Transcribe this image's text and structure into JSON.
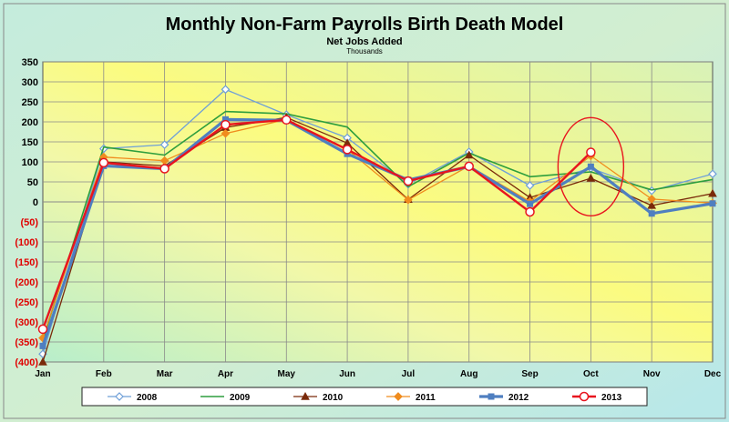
{
  "chart_data": {
    "type": "line",
    "title": "Monthly Non-Farm Payrolls Birth Death Model",
    "subtitle": "Net Jobs Added",
    "units": "Thousands",
    "categories": [
      "Jan",
      "Feb",
      "Mar",
      "Apr",
      "May",
      "Jun",
      "Jul",
      "Aug",
      "Sep",
      "Oct",
      "Nov",
      "Dec"
    ],
    "ylim": [
      -400,
      350
    ],
    "yticks": [
      {
        "value": 350,
        "label": "350"
      },
      {
        "value": 300,
        "label": "300"
      },
      {
        "value": 250,
        "label": "250"
      },
      {
        "value": 200,
        "label": "200"
      },
      {
        "value": 150,
        "label": "150"
      },
      {
        "value": 100,
        "label": "100"
      },
      {
        "value": 50,
        "label": "50"
      },
      {
        "value": 0,
        "label": "0"
      },
      {
        "value": -50,
        "label": "(50)"
      },
      {
        "value": -100,
        "label": "(100)"
      },
      {
        "value": -150,
        "label": "(150)"
      },
      {
        "value": -200,
        "label": "(200)"
      },
      {
        "value": -250,
        "label": "(250)"
      },
      {
        "value": -300,
        "label": "(300)"
      },
      {
        "value": -350,
        "label": "(350)"
      },
      {
        "value": -400,
        "label": "(400)"
      }
    ],
    "grid": true,
    "legend_position": "bottom",
    "series": [
      {
        "name": "2008",
        "color": "#6e9fd8",
        "marker": "diamond-open",
        "values": [
          -380,
          133,
          143,
          281,
          218,
          160,
          44,
          125,
          41,
          84,
          28,
          70
        ]
      },
      {
        "name": "2009",
        "color": "#2e9e3e",
        "marker": "none",
        "values": [
          -345,
          137,
          117,
          226,
          220,
          187,
          38,
          122,
          63,
          75,
          30,
          56
        ]
      },
      {
        "name": "2010",
        "color": "#7a2a0a",
        "marker": "triangle",
        "values": [
          -400,
          100,
          90,
          186,
          211,
          147,
          6,
          117,
          11,
          59,
          -9,
          21
        ]
      },
      {
        "name": "2011",
        "color": "#f08c1e",
        "marker": "diamond",
        "values": [
          -340,
          112,
          103,
          171,
          206,
          131,
          5,
          90,
          1,
          115,
          7,
          -3
        ]
      },
      {
        "name": "2012",
        "color": "#4f7fc0",
        "marker": "square",
        "values": [
          -360,
          90,
          83,
          206,
          204,
          120,
          55,
          88,
          -5,
          88,
          -29,
          -4
        ]
      },
      {
        "name": "2013",
        "color": "#e8141e",
        "marker": "circle-open",
        "values": [
          -318,
          98,
          83,
          193,
          205,
          131,
          52,
          89,
          -25,
          124,
          null,
          null
        ]
      }
    ],
    "annotation": {
      "shape": "ellipse",
      "color": "#e8141e",
      "category": "Oct",
      "center_value": 88
    }
  }
}
